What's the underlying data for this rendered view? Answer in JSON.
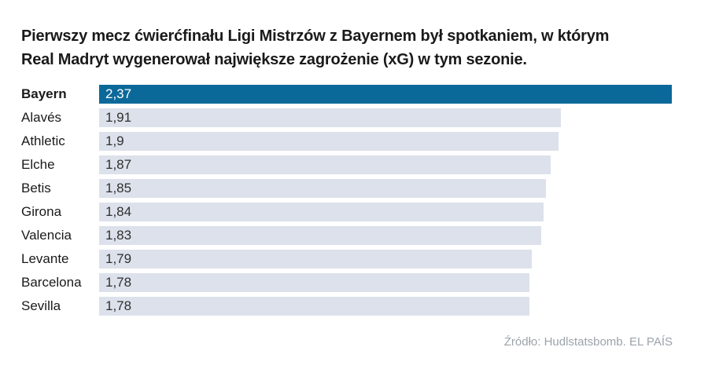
{
  "title": {
    "line1": "Pierwszy mecz ćwierćfinału Ligi Mistrzów z Bayernem był spotkaniem, w którym",
    "line2": "Real Madryt wygenerował największe zagrożenie (xG) w tym sezonie."
  },
  "chart_data": {
    "type": "bar",
    "orientation": "horizontal",
    "categories": [
      "Bayern",
      "Alavés",
      "Athletic",
      "Elche",
      "Betis",
      "Girona",
      "Valencia",
      "Levante",
      "Barcelona",
      "Sevilla"
    ],
    "values": [
      2.37,
      1.91,
      1.9,
      1.87,
      1.85,
      1.84,
      1.83,
      1.79,
      1.78,
      1.78
    ],
    "value_labels": [
      "2,37",
      "1,91",
      "1,9",
      "1,87",
      "1,85",
      "1,84",
      "1,83",
      "1,79",
      "1,78",
      "1,78"
    ],
    "highlighted_category": "Bayern",
    "xlim": [
      0,
      2.37
    ],
    "grid": false,
    "legend": "none",
    "colors": {
      "highlight_bar": "#0b699a",
      "bar": "#dce1eb",
      "highlight_value_text": "#ffffff",
      "value_text": "#303030"
    }
  },
  "source": "Źródło: Hudlstatsbomb. EL PAÍS"
}
